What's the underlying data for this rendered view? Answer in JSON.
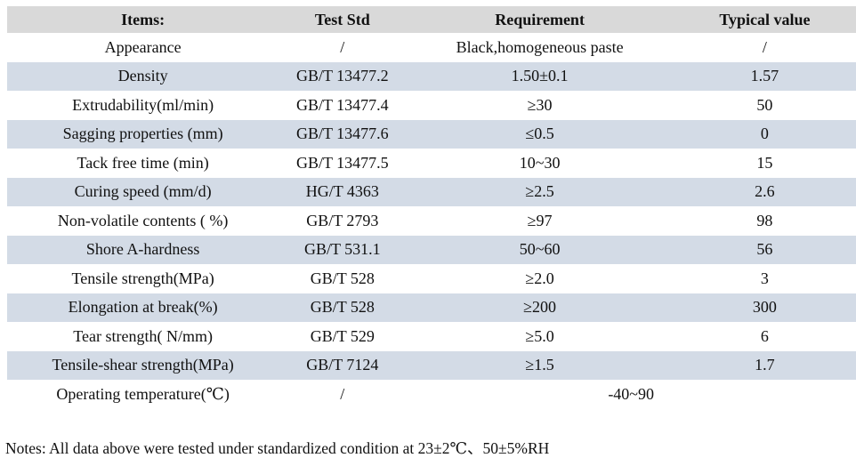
{
  "colors": {
    "header_bg": "#d9d9d9",
    "stripe_bg": "#d3dbe6",
    "text": "#111111"
  },
  "table": {
    "headers": [
      "Items:",
      "Test Std",
      "Requirement",
      "Typical value"
    ],
    "rows": [
      {
        "item": "Appearance",
        "std": "/",
        "requirement": "Black,homogeneous paste",
        "typical": "/"
      },
      {
        "item": "Density",
        "std": "GB/T 13477.2",
        "requirement": "1.50±0.1",
        "typical": "1.57"
      },
      {
        "item": "Extrudability(ml/min)",
        "std": "GB/T 13477.4",
        "requirement": "≥30",
        "typical": "50"
      },
      {
        "item": "Sagging properties (mm)",
        "std": "GB/T 13477.6",
        "requirement": "≤0.5",
        "typical": "0"
      },
      {
        "item": "Tack free time (min)",
        "std": "GB/T 13477.5",
        "requirement": "10~30",
        "typical": "15"
      },
      {
        "item": "Curing speed (mm/d)",
        "std": "HG/T 4363",
        "requirement": "≥2.5",
        "typical": "2.6"
      },
      {
        "item": "Non-volatile contents ( %)",
        "std": "GB/T 2793",
        "requirement": "≥97",
        "typical": "98"
      },
      {
        "item": "Shore A-hardness",
        "std": "GB/T 531.1",
        "requirement": "50~60",
        "typical": "56"
      },
      {
        "item": "Tensile strength(MPa)",
        "std": "GB/T 528",
        "requirement": "≥2.0",
        "typical": "3"
      },
      {
        "item": "Elongation at break(%)",
        "std": "GB/T 528",
        "requirement": "≥200",
        "typical": "300"
      },
      {
        "item": "Tear strength( N/mm)",
        "std": "GB/T 529",
        "requirement": "≥5.0",
        "typical": "6"
      },
      {
        "item": "Tensile-shear strength(MPa)",
        "std": "GB/T 7124",
        "requirement": "≥1.5",
        "typical": "1.7"
      },
      {
        "item": "Operating temperature(℃)",
        "std": "/",
        "requirement": "-40~90",
        "typical": null,
        "merged": true
      }
    ]
  },
  "notes": "Notes: All data above were tested under standardized condition at 23±2℃、50±5%RH"
}
